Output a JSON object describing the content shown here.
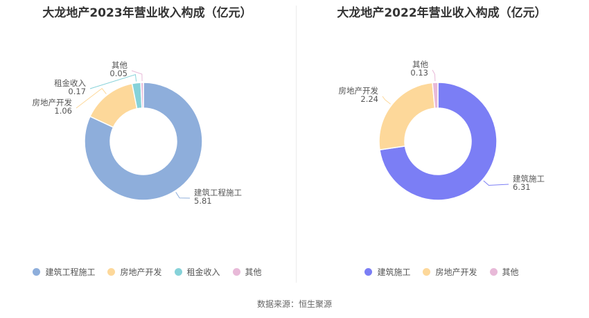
{
  "source_text": "数据来源：恒生聚源",
  "chart_data": [
    {
      "type": "pie",
      "donut": true,
      "title": "大龙地产2023年营业收入构成（亿元）",
      "unit": "亿元",
      "slices": [
        {
          "name": "建筑工程施工",
          "value": 5.81,
          "color": "#8eaedb"
        },
        {
          "name": "房地产开发",
          "value": 1.06,
          "color": "#fdd89a"
        },
        {
          "name": "租金收入",
          "value": 0.17,
          "color": "#86d2d9"
        },
        {
          "name": "其他",
          "value": 0.05,
          "color": "#e8b9d8"
        }
      ]
    },
    {
      "type": "pie",
      "donut": true,
      "title": "大龙地产2022年营业收入构成（亿元）",
      "unit": "亿元",
      "slices": [
        {
          "name": "建筑施工",
          "value": 6.31,
          "color": "#7b7ef5"
        },
        {
          "name": "房地产开发",
          "value": 2.24,
          "color": "#fdd89a"
        },
        {
          "name": "其他",
          "value": 0.13,
          "color": "#e8b9d8"
        }
      ]
    }
  ]
}
